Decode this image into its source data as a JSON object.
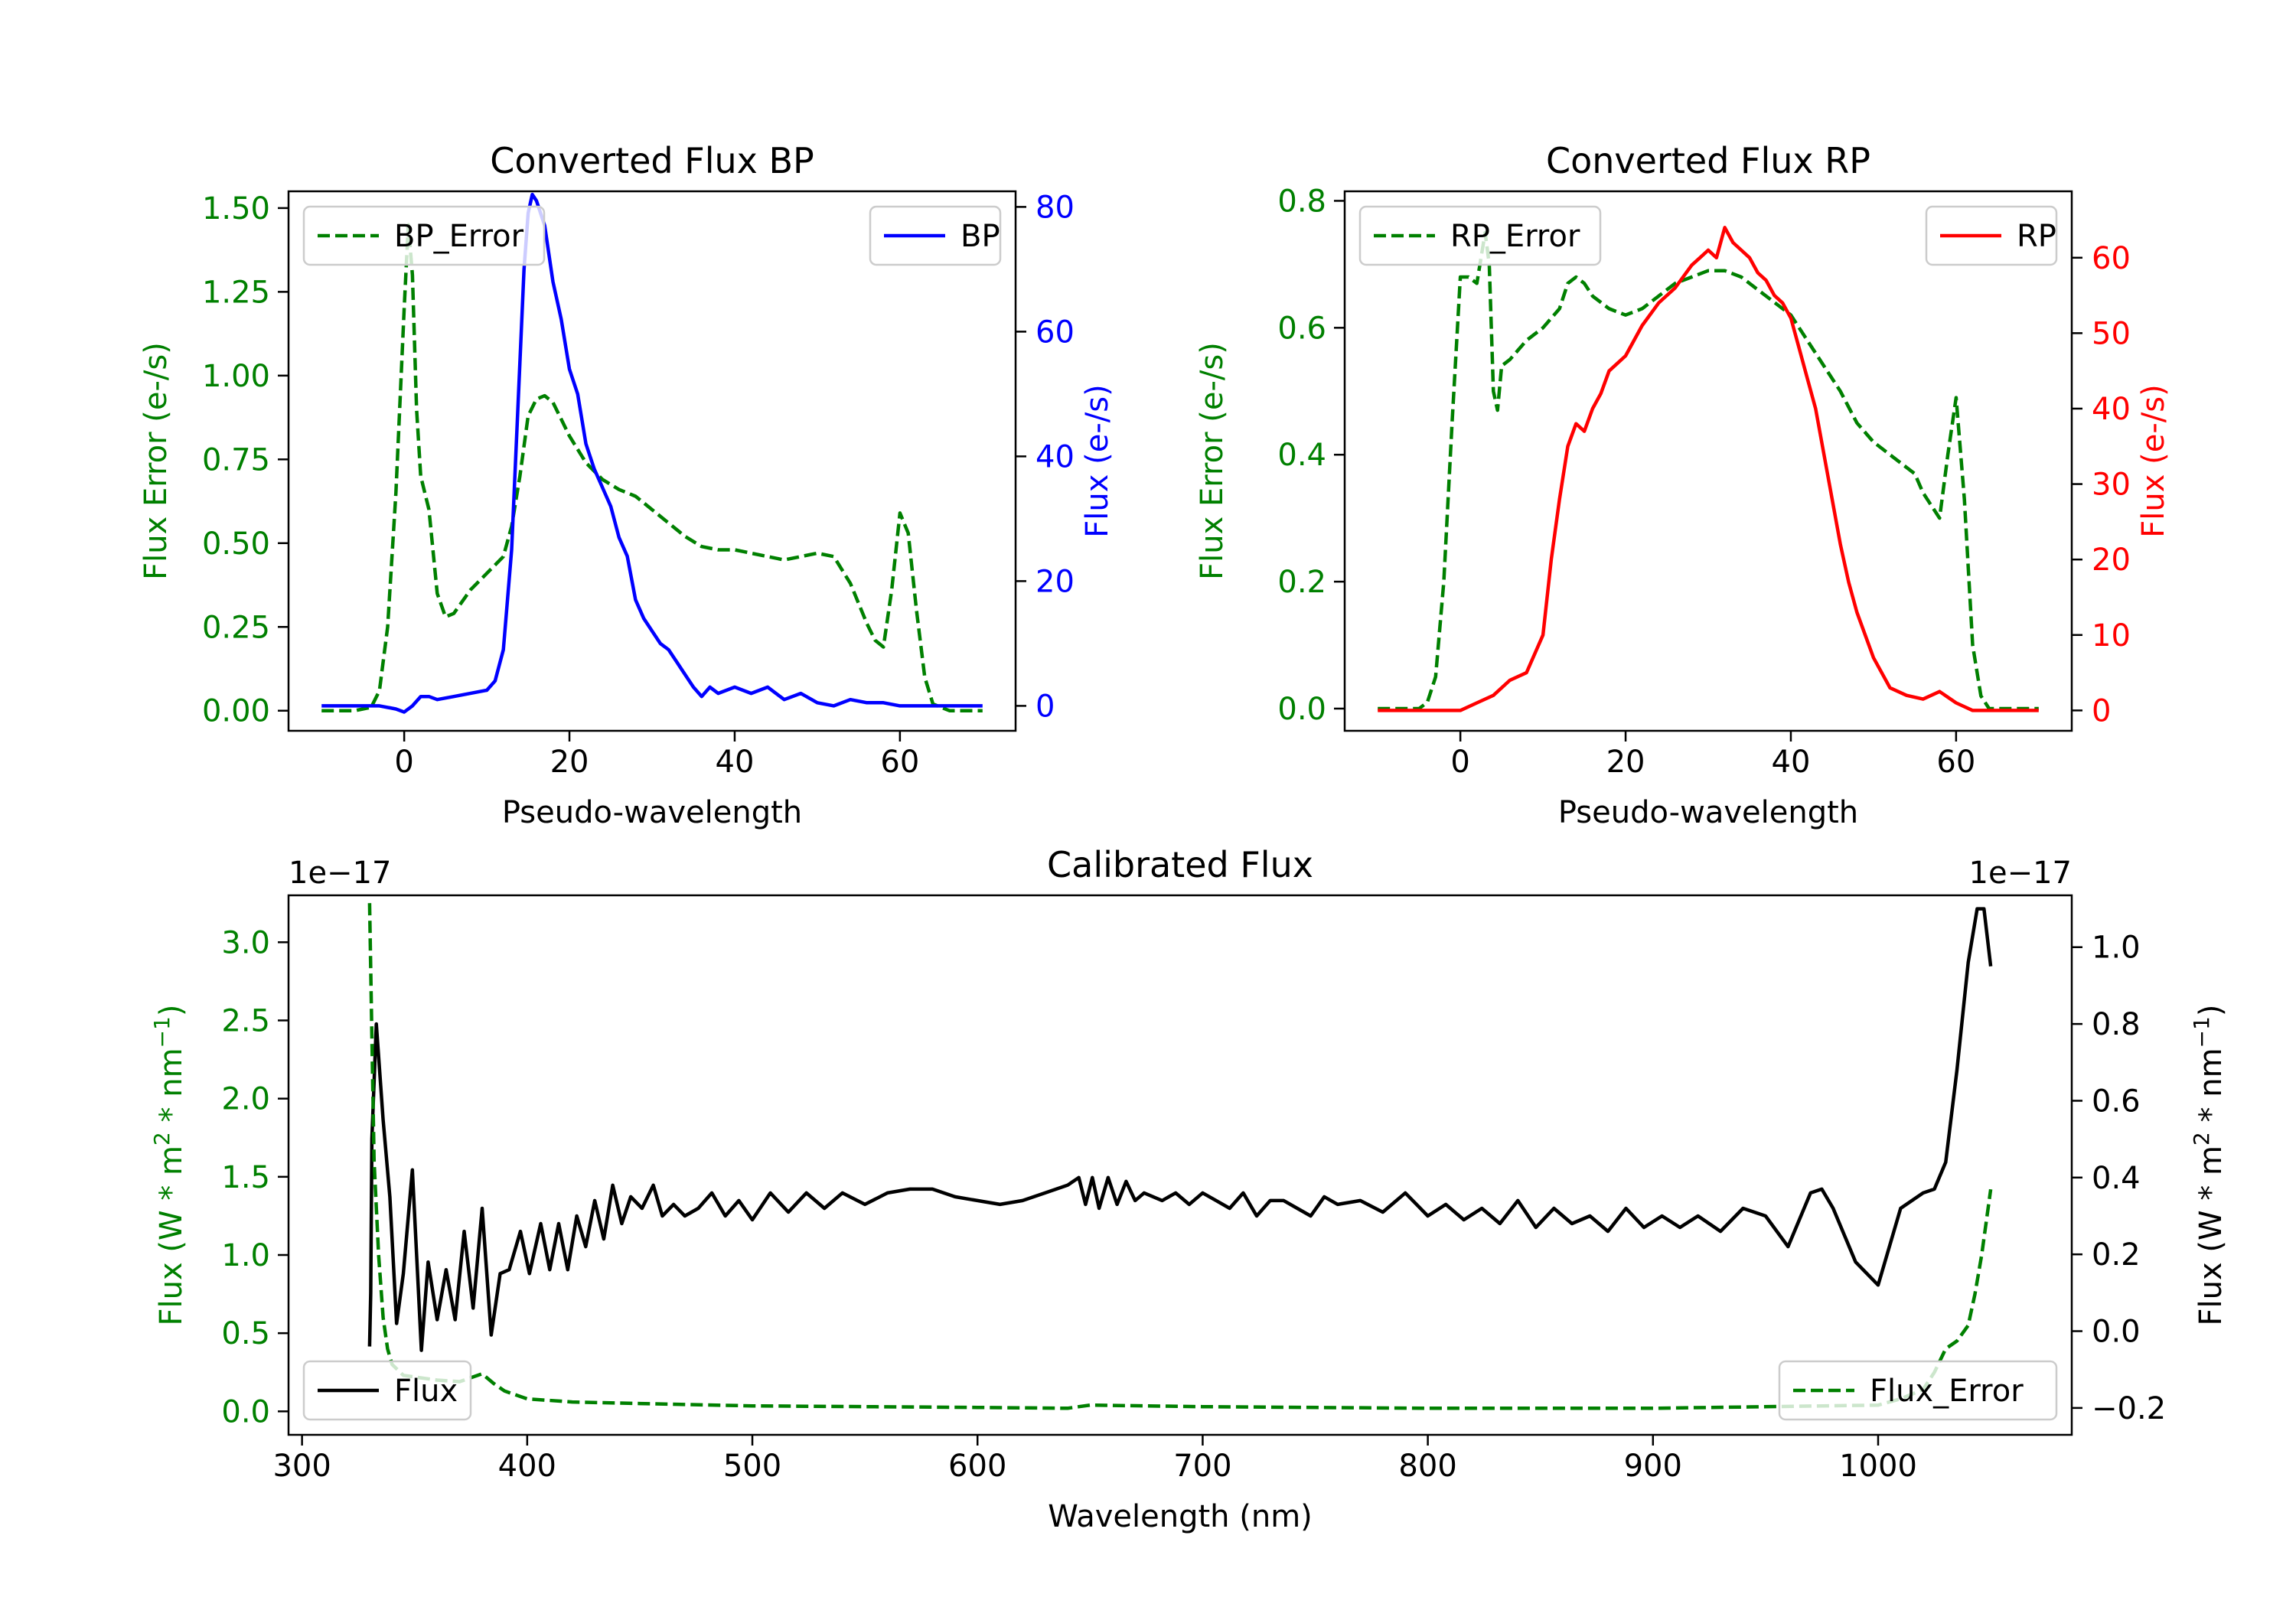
{
  "chart_data": [
    {
      "type": "line",
      "title": "Converted Flux BP",
      "xlabel": "Pseudo-wavelength",
      "xlim": [
        -14,
        74
      ],
      "xticks": [
        0,
        20,
        40,
        60
      ],
      "left_axis": {
        "label": "Flux Error (e-/s)",
        "color": "#008000",
        "lim": [
          -0.06,
          1.55
        ],
        "ticks": [
          0.0,
          0.25,
          0.5,
          0.75,
          1.0,
          1.25,
          1.5
        ],
        "tick_labels": [
          "0.00",
          "0.25",
          "0.50",
          "0.75",
          "1.00",
          "1.25",
          "1.50"
        ]
      },
      "right_axis": {
        "label": "Flux (e-/s)",
        "color": "#0000ff",
        "lim": [
          -4,
          82.5
        ],
        "ticks": [
          0,
          20,
          40,
          60,
          80
        ],
        "tick_labels": [
          "0",
          "20",
          "40",
          "60",
          "80"
        ]
      },
      "series": [
        {
          "name": "BP_Error",
          "axis": "left",
          "color": "#008000",
          "style": "dashed",
          "x": [
            -10,
            -6,
            -4,
            -3,
            -2,
            -1,
            0,
            0.5,
            1,
            1.5,
            2,
            3,
            4,
            5,
            6,
            8,
            10,
            12,
            13,
            14,
            15,
            16,
            17,
            18,
            19,
            20,
            22,
            24,
            26,
            28,
            30,
            32,
            34,
            36,
            38,
            40,
            42,
            44,
            46,
            48,
            50,
            52,
            54,
            55,
            56,
            57,
            58,
            59,
            60,
            61,
            62,
            63,
            64,
            66,
            70
          ],
          "y": [
            0.0,
            0.0,
            0.01,
            0.06,
            0.25,
            0.65,
            1.2,
            1.45,
            1.3,
            0.9,
            0.7,
            0.6,
            0.35,
            0.28,
            0.29,
            0.36,
            0.41,
            0.46,
            0.55,
            0.7,
            0.88,
            0.93,
            0.94,
            0.92,
            0.87,
            0.82,
            0.74,
            0.69,
            0.66,
            0.64,
            0.6,
            0.56,
            0.52,
            0.49,
            0.48,
            0.48,
            0.47,
            0.46,
            0.45,
            0.46,
            0.47,
            0.46,
            0.38,
            0.32,
            0.26,
            0.21,
            0.19,
            0.36,
            0.59,
            0.53,
            0.3,
            0.1,
            0.02,
            0.0,
            0.0
          ]
        },
        {
          "name": "BP",
          "axis": "right",
          "color": "#0000ff",
          "style": "solid",
          "x": [
            -10,
            -6,
            -3,
            -1,
            0,
            1,
            2,
            3,
            4,
            6,
            8,
            10,
            11,
            12,
            13,
            14,
            14.5,
            15,
            15.5,
            16,
            17,
            18,
            19,
            20,
            21,
            22,
            23,
            24,
            25,
            26,
            27,
            28,
            29,
            30,
            31,
            32,
            33,
            34,
            35,
            36,
            37,
            38,
            40,
            42,
            44,
            46,
            48,
            50,
            52,
            54,
            56,
            58,
            60,
            62,
            64,
            66,
            70
          ],
          "y": [
            0,
            0,
            0,
            -0.5,
            -1,
            0,
            1.5,
            1.5,
            1,
            1.5,
            2,
            2.5,
            4,
            9,
            25,
            55,
            70,
            79,
            82,
            81,
            77,
            68,
            62,
            54,
            50,
            42,
            38,
            35,
            32,
            27,
            24,
            17,
            14,
            12,
            10,
            9,
            7,
            5,
            3,
            1.5,
            3,
            2,
            3,
            2,
            3,
            1,
            2,
            0.5,
            0,
            1,
            0.5,
            0.5,
            0,
            0,
            0,
            0,
            0
          ]
        }
      ],
      "legend_left": {
        "label": "BP_Error",
        "position": "upper left"
      },
      "legend_right": {
        "label": "BP",
        "position": "upper right"
      }
    },
    {
      "type": "line",
      "title": "Converted Flux RP",
      "xlabel": "Pseudo-wavelength",
      "xlim": [
        -14,
        74
      ],
      "xticks": [
        0,
        20,
        40,
        60
      ],
      "left_axis": {
        "label": "Flux Error (e-/s)",
        "color": "#008000",
        "lim": [
          -0.035,
          0.815
        ],
        "ticks": [
          0.0,
          0.2,
          0.4,
          0.6,
          0.8
        ],
        "tick_labels": [
          "0.0",
          "0.2",
          "0.4",
          "0.6",
          "0.8"
        ]
      },
      "right_axis": {
        "label": "Flux (e-/s)",
        "color": "#ff0000",
        "lim": [
          -2.7,
          68.8
        ],
        "ticks": [
          0,
          10,
          20,
          30,
          40,
          50,
          60
        ],
        "tick_labels": [
          "0",
          "10",
          "20",
          "30",
          "40",
          "50",
          "60"
        ]
      },
      "series": [
        {
          "name": "RP_Error",
          "axis": "left",
          "color": "#008000",
          "style": "dashed",
          "x": [
            -10,
            -5,
            -4,
            -3,
            -2,
            -1,
            0,
            1,
            2,
            3,
            3.5,
            4,
            4.5,
            5,
            6,
            8,
            10,
            12,
            13,
            14,
            15,
            16,
            18,
            20,
            22,
            24,
            26,
            28,
            30,
            32,
            34,
            36,
            38,
            40,
            42,
            44,
            46,
            48,
            50,
            52,
            54,
            55,
            56,
            57,
            58,
            59,
            60,
            61,
            62,
            63,
            64,
            66,
            70
          ],
          "y": [
            0.0,
            0.0,
            0.01,
            0.05,
            0.2,
            0.45,
            0.68,
            0.68,
            0.67,
            0.75,
            0.7,
            0.5,
            0.47,
            0.54,
            0.55,
            0.58,
            0.6,
            0.63,
            0.67,
            0.68,
            0.67,
            0.65,
            0.63,
            0.62,
            0.63,
            0.65,
            0.67,
            0.68,
            0.69,
            0.69,
            0.68,
            0.66,
            0.64,
            0.62,
            0.58,
            0.54,
            0.5,
            0.45,
            0.42,
            0.4,
            0.38,
            0.37,
            0.34,
            0.32,
            0.3,
            0.4,
            0.49,
            0.33,
            0.1,
            0.02,
            0.0,
            0.0,
            0.0
          ]
        },
        {
          "name": "RP",
          "axis": "right",
          "color": "#ff0000",
          "style": "solid",
          "x": [
            -10,
            -5,
            -2,
            0,
            2,
            4,
            6,
            8,
            10,
            11,
            12,
            13,
            14,
            15,
            16,
            17,
            18,
            19,
            20,
            22,
            24,
            26,
            28,
            29,
            30,
            31,
            32,
            33,
            34,
            35,
            36,
            37,
            38,
            39,
            40,
            41,
            42,
            43,
            44,
            45,
            46,
            47,
            48,
            49,
            50,
            52,
            54,
            56,
            58,
            60,
            62,
            64,
            66,
            70
          ],
          "y": [
            0,
            0,
            0,
            0,
            1,
            2,
            4,
            5,
            10,
            20,
            28,
            35,
            38,
            37,
            40,
            42,
            45,
            46,
            47,
            51,
            54,
            56,
            59,
            60,
            61,
            60,
            64,
            62,
            61,
            60,
            58,
            57,
            55,
            54,
            52,
            48,
            44,
            40,
            34,
            28,
            22,
            17,
            13,
            10,
            7,
            3,
            2,
            1.5,
            2.5,
            1,
            0,
            0,
            0,
            0
          ]
        }
      ],
      "legend_left": {
        "label": "RP_Error",
        "position": "upper left"
      },
      "legend_right": {
        "label": "RP",
        "position": "upper right"
      }
    },
    {
      "type": "line",
      "title": "Calibrated Flux",
      "xlabel": "Wavelength (nm)",
      "xlim": [
        294,
        1086
      ],
      "xticks": [
        300,
        400,
        500,
        600,
        700,
        800,
        900,
        1000
      ],
      "left_axis": {
        "label": "Flux (W * m^2 * nm^-1)",
        "color": "#008000",
        "scale": "1e−17",
        "lim": [
          -0.15,
          3.3
        ],
        "ticks": [
          0.0,
          0.5,
          1.0,
          1.5,
          2.0,
          2.5,
          3.0
        ],
        "tick_labels": [
          "0.0",
          "0.5",
          "1.0",
          "1.5",
          "2.0",
          "2.5",
          "3.0"
        ]
      },
      "right_axis": {
        "label": "Flux (W * m^2 * nm^-1)",
        "color": "#000000",
        "scale": "1e−17",
        "lim": [
          -0.27,
          1.135
        ],
        "ticks": [
          -0.2,
          0.0,
          0.2,
          0.4,
          0.6,
          0.8,
          1.0
        ],
        "tick_labels": [
          "−0.2",
          "0.0",
          "0.2",
          "0.4",
          "0.6",
          "0.8",
          "1.0"
        ]
      },
      "series": [
        {
          "name": "Flux",
          "axis": "right",
          "color": "#000000",
          "style": "solid",
          "x": [
            330,
            330.5,
            331,
            333,
            336,
            339,
            342,
            345,
            349,
            353,
            356,
            360,
            364,
            368,
            372,
            376,
            380,
            384,
            388,
            392,
            397,
            401,
            406,
            410,
            414,
            418,
            422,
            426,
            430,
            434,
            438,
            442,
            446,
            451,
            456,
            460,
            465,
            470,
            476,
            482,
            488,
            494,
            500,
            508,
            516,
            524,
            532,
            540,
            550,
            560,
            570,
            580,
            590,
            600,
            610,
            620,
            630,
            640,
            645,
            648,
            651,
            654,
            658,
            662,
            666,
            670,
            674,
            678,
            682,
            688,
            694,
            700,
            706,
            712,
            718,
            724,
            730,
            736,
            742,
            748,
            754,
            760,
            770,
            780,
            790,
            795,
            800,
            808,
            816,
            824,
            832,
            840,
            848,
            856,
            864,
            872,
            880,
            888,
            896,
            904,
            912,
            920,
            930,
            940,
            950,
            960,
            970,
            975,
            980,
            990,
            1000,
            1010,
            1020,
            1025,
            1030,
            1035,
            1040,
            1044,
            1047,
            1050
          ],
          "y": [
            -0.04,
            0.1,
            0.5,
            0.8,
            0.55,
            0.35,
            0.02,
            0.15,
            0.42,
            -0.05,
            0.18,
            0.03,
            0.16,
            0.03,
            0.26,
            0.06,
            0.32,
            -0.01,
            0.15,
            0.16,
            0.26,
            0.15,
            0.28,
            0.16,
            0.28,
            0.16,
            0.3,
            0.22,
            0.34,
            0.24,
            0.38,
            0.28,
            0.35,
            0.32,
            0.38,
            0.3,
            0.33,
            0.3,
            0.32,
            0.36,
            0.3,
            0.34,
            0.29,
            0.36,
            0.31,
            0.36,
            0.32,
            0.36,
            0.33,
            0.36,
            0.37,
            0.37,
            0.35,
            0.34,
            0.33,
            0.34,
            0.36,
            0.38,
            0.4,
            0.33,
            0.4,
            0.32,
            0.4,
            0.33,
            0.39,
            0.34,
            0.36,
            0.35,
            0.34,
            0.36,
            0.33,
            0.36,
            0.34,
            0.32,
            0.36,
            0.3,
            0.34,
            0.34,
            0.32,
            0.3,
            0.35,
            0.33,
            0.34,
            0.31,
            0.36,
            0.33,
            0.3,
            0.33,
            0.29,
            0.32,
            0.28,
            0.34,
            0.27,
            0.32,
            0.28,
            0.3,
            0.26,
            0.32,
            0.27,
            0.3,
            0.27,
            0.3,
            0.26,
            0.32,
            0.3,
            0.22,
            0.36,
            0.37,
            0.32,
            0.18,
            0.12,
            0.32,
            0.36,
            0.37,
            0.44,
            0.68,
            0.96,
            1.1,
            1.1,
            0.95
          ]
        },
        {
          "name": "Flux_Error",
          "axis": "left",
          "color": "#008000",
          "style": "dashed",
          "x": [
            330,
            331,
            332,
            334,
            336,
            338,
            340,
            345,
            350,
            360,
            370,
            380,
            385,
            390,
            400,
            420,
            450,
            500,
            550,
            600,
            640,
            650,
            700,
            800,
            900,
            1000,
            1010,
            1020,
            1025,
            1030,
            1035,
            1040,
            1043,
            1046,
            1050
          ],
          "y": [
            3.25,
            2.4,
            1.6,
            1.0,
            0.6,
            0.4,
            0.3,
            0.23,
            0.22,
            0.2,
            0.19,
            0.24,
            0.18,
            0.13,
            0.08,
            0.06,
            0.05,
            0.035,
            0.03,
            0.025,
            0.02,
            0.04,
            0.03,
            0.02,
            0.02,
            0.04,
            0.08,
            0.14,
            0.25,
            0.4,
            0.45,
            0.55,
            0.75,
            1.0,
            1.42
          ]
        }
      ],
      "legend_left": {
        "label": "Flux",
        "position": "lower left"
      },
      "legend_right": {
        "label": "Flux_Error",
        "position": "lower right"
      }
    }
  ]
}
